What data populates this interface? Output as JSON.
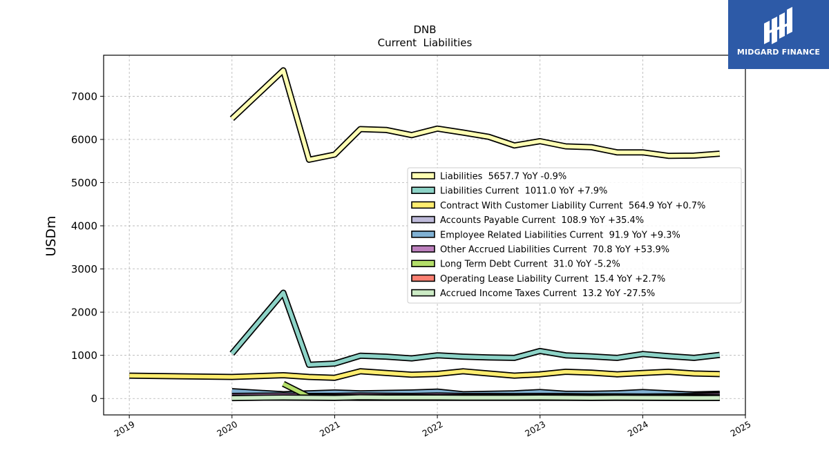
{
  "brand": {
    "name": "MIDGARD FINANCE",
    "color": "#2d5aa7"
  },
  "chart_data": {
    "type": "line",
    "title": "DNB",
    "subtitle": "Current  Liabilities",
    "ylabel": "USDm",
    "xlabel": "",
    "xlim": [
      2018.75,
      2025.0
    ],
    "ylim": [
      -380,
      7950
    ],
    "xticks": [
      2019,
      2020,
      2021,
      2022,
      2023,
      2024,
      2025
    ],
    "yticks": [
      0,
      1000,
      2000,
      3000,
      4000,
      5000,
      6000,
      7000
    ],
    "grid": true,
    "legend_position": "center-right",
    "series": [
      {
        "name": "Liabilities  5657.7 YoY -0.9%",
        "color": "#ffffb3",
        "points": [
          [
            2020.0,
            6480
          ],
          [
            2020.5,
            7600
          ],
          [
            2020.75,
            5530
          ],
          [
            2021.0,
            5650
          ],
          [
            2021.25,
            6240
          ],
          [
            2021.5,
            6220
          ],
          [
            2021.75,
            6100
          ],
          [
            2022.0,
            6250
          ],
          [
            2022.25,
            6160
          ],
          [
            2022.5,
            6060
          ],
          [
            2022.75,
            5860
          ],
          [
            2023.0,
            5960
          ],
          [
            2023.25,
            5840
          ],
          [
            2023.5,
            5820
          ],
          [
            2023.75,
            5700
          ],
          [
            2024.0,
            5700
          ],
          [
            2024.25,
            5620
          ],
          [
            2024.5,
            5625
          ],
          [
            2024.75,
            5670
          ]
        ]
      },
      {
        "name": "Liabilities Current  1011.0 YoY +7.9%",
        "color": "#8dd3c7",
        "points": [
          [
            2020.0,
            1040
          ],
          [
            2020.5,
            2450
          ],
          [
            2020.75,
            780
          ],
          [
            2021.0,
            810
          ],
          [
            2021.25,
            990
          ],
          [
            2021.5,
            970
          ],
          [
            2021.75,
            930
          ],
          [
            2022.0,
            1000
          ],
          [
            2022.25,
            970
          ],
          [
            2022.5,
            950
          ],
          [
            2022.75,
            940
          ],
          [
            2023.0,
            1100
          ],
          [
            2023.25,
            1000
          ],
          [
            2023.5,
            975
          ],
          [
            2023.75,
            940
          ],
          [
            2024.0,
            1030
          ],
          [
            2024.25,
            980
          ],
          [
            2024.5,
            940
          ],
          [
            2024.75,
            1010
          ]
        ]
      },
      {
        "name": "Contract With Customer Liability Current  564.9 YoY +0.7%",
        "color": "#ffed6f",
        "points": [
          [
            2019.0,
            530
          ],
          [
            2020.0,
            500
          ],
          [
            2020.5,
            540
          ],
          [
            2020.75,
            500
          ],
          [
            2021.0,
            480
          ],
          [
            2021.25,
            630
          ],
          [
            2021.5,
            590
          ],
          [
            2021.75,
            550
          ],
          [
            2022.0,
            570
          ],
          [
            2022.25,
            630
          ],
          [
            2022.5,
            580
          ],
          [
            2022.75,
            530
          ],
          [
            2023.0,
            560
          ],
          [
            2023.25,
            620
          ],
          [
            2023.5,
            600
          ],
          [
            2023.75,
            560
          ],
          [
            2024.0,
            590
          ],
          [
            2024.25,
            620
          ],
          [
            2024.5,
            580
          ],
          [
            2024.75,
            565
          ]
        ]
      },
      {
        "name": "Accounts Payable Current  108.9 YoY +35.4%",
        "color": "#bebada",
        "points": [
          [
            2020.0,
            130
          ],
          [
            2020.5,
            100
          ],
          [
            2020.75,
            80
          ],
          [
            2021.0,
            90
          ],
          [
            2021.25,
            100
          ],
          [
            2021.5,
            100
          ],
          [
            2021.75,
            100
          ],
          [
            2022.0,
            110
          ],
          [
            2022.25,
            100
          ],
          [
            2022.5,
            95
          ],
          [
            2022.75,
            90
          ],
          [
            2023.0,
            100
          ],
          [
            2023.25,
            95
          ],
          [
            2023.5,
            90
          ],
          [
            2023.75,
            90
          ],
          [
            2024.0,
            110
          ],
          [
            2024.25,
            100
          ],
          [
            2024.5,
            95
          ],
          [
            2024.75,
            109
          ]
        ]
      },
      {
        "name": "Employee Related Liabilities Current  91.9 YoY +9.3%",
        "color": "#80b1d3",
        "points": [
          [
            2020.0,
            170
          ],
          [
            2020.5,
            100
          ],
          [
            2020.75,
            120
          ],
          [
            2021.0,
            140
          ],
          [
            2021.25,
            120
          ],
          [
            2021.5,
            130
          ],
          [
            2021.75,
            140
          ],
          [
            2022.0,
            160
          ],
          [
            2022.25,
            100
          ],
          [
            2022.5,
            110
          ],
          [
            2022.75,
            120
          ],
          [
            2023.0,
            150
          ],
          [
            2023.25,
            110
          ],
          [
            2023.5,
            110
          ],
          [
            2023.75,
            120
          ],
          [
            2024.0,
            150
          ],
          [
            2024.25,
            120
          ],
          [
            2024.5,
            90
          ],
          [
            2024.75,
            92
          ]
        ]
      },
      {
        "name": "Other Accrued Liabilities Current  70.8 YoY +53.9%",
        "color": "#bc80bd",
        "points": [
          [
            2020.0,
            60
          ],
          [
            2020.5,
            70
          ],
          [
            2020.75,
            60
          ],
          [
            2021.0,
            60
          ],
          [
            2021.25,
            70
          ],
          [
            2021.5,
            65
          ],
          [
            2021.75,
            60
          ],
          [
            2022.0,
            70
          ],
          [
            2022.25,
            60
          ],
          [
            2022.5,
            60
          ],
          [
            2022.75,
            55
          ],
          [
            2023.0,
            60
          ],
          [
            2023.25,
            55
          ],
          [
            2023.5,
            50
          ],
          [
            2023.75,
            50
          ],
          [
            2024.0,
            46
          ],
          [
            2024.25,
            50
          ],
          [
            2024.5,
            60
          ],
          [
            2024.75,
            71
          ]
        ]
      },
      {
        "name": "Long Term Debt Current  31.0 YoY -5.2%",
        "color": "#b3de69",
        "points": [
          [
            2020.5,
            340
          ],
          [
            2020.75,
            40
          ],
          [
            2021.0,
            30
          ],
          [
            2021.25,
            30
          ],
          [
            2021.5,
            30
          ],
          [
            2021.75,
            30
          ],
          [
            2022.0,
            30
          ],
          [
            2022.25,
            30
          ],
          [
            2022.5,
            30
          ],
          [
            2022.75,
            30
          ],
          [
            2023.0,
            30
          ],
          [
            2023.25,
            30
          ],
          [
            2023.5,
            30
          ],
          [
            2023.75,
            30
          ],
          [
            2024.0,
            33
          ],
          [
            2024.25,
            32
          ],
          [
            2024.5,
            31
          ],
          [
            2024.75,
            31
          ]
        ]
      },
      {
        "name": "Operating Lease Liability Current  15.4 YoY +2.7%",
        "color": "#fb8072",
        "points": [
          [
            2020.0,
            20
          ],
          [
            2020.5,
            20
          ],
          [
            2020.75,
            18
          ],
          [
            2021.0,
            18
          ],
          [
            2021.25,
            17
          ],
          [
            2021.5,
            17
          ],
          [
            2021.75,
            16
          ],
          [
            2022.0,
            16
          ],
          [
            2022.25,
            16
          ],
          [
            2022.5,
            15
          ],
          [
            2022.75,
            15
          ],
          [
            2023.0,
            15
          ],
          [
            2023.25,
            15
          ],
          [
            2023.5,
            15
          ],
          [
            2023.75,
            15
          ],
          [
            2024.0,
            15
          ],
          [
            2024.25,
            15
          ],
          [
            2024.5,
            15
          ],
          [
            2024.75,
            15.4
          ]
        ]
      },
      {
        "name": "Accrued Income Taxes Current  13.2 YoY -27.5%",
        "color": "#ccebc5",
        "points": [
          [
            2020.0,
            10
          ],
          [
            2020.5,
            25
          ],
          [
            2020.75,
            20
          ],
          [
            2021.0,
            15
          ],
          [
            2021.25,
            30
          ],
          [
            2021.5,
            25
          ],
          [
            2021.75,
            25
          ],
          [
            2022.0,
            25
          ],
          [
            2022.25,
            20
          ],
          [
            2022.5,
            20
          ],
          [
            2022.75,
            20
          ],
          [
            2023.0,
            25
          ],
          [
            2023.25,
            20
          ],
          [
            2023.5,
            15
          ],
          [
            2023.75,
            20
          ],
          [
            2024.0,
            18
          ],
          [
            2024.25,
            15
          ],
          [
            2024.5,
            12
          ],
          [
            2024.75,
            13.2
          ]
        ]
      }
    ]
  }
}
